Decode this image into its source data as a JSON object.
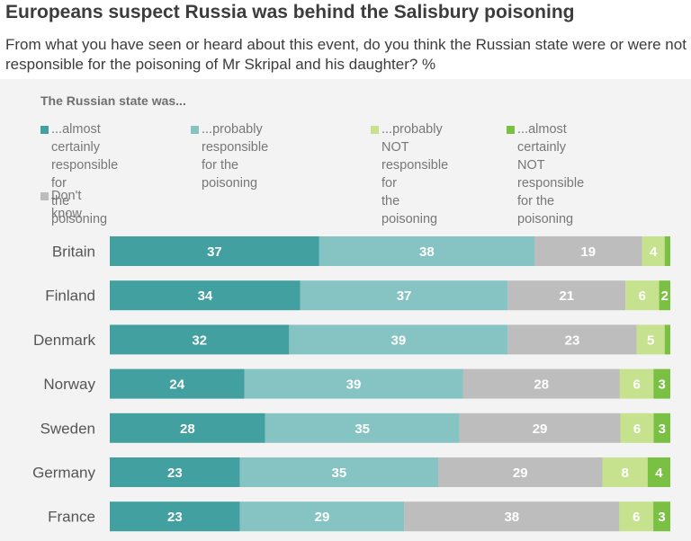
{
  "chart_data": {
    "type": "bar",
    "orientation": "horizontal-stacked",
    "title": "Europeans suspect Russia was behind the Salisbury poisoning",
    "subtitle": "From what you have seen or heard about this event, do you think the Russian state were or were not responsible for the poisoning of Mr Skripal and his daughter? %",
    "legend_title": "The Russian state was...",
    "categories": [
      "Britain",
      "Finland",
      "Denmark",
      "Norway",
      "Sweden",
      "Germany",
      "France"
    ],
    "series": [
      {
        "name": "...almost certainly\nresponsible for\nthe poisoning",
        "color": "#43a0a0",
        "values": [
          37,
          34,
          32,
          24,
          28,
          23,
          23
        ]
      },
      {
        "name": "...probably responsible\nfor the poisoning",
        "color": "#85c4c3",
        "values": [
          38,
          37,
          39,
          39,
          35,
          35,
          29
        ]
      },
      {
        "name": "Don't know",
        "color": "#bdbdbd",
        "values": [
          19,
          21,
          23,
          28,
          29,
          29,
          38
        ]
      },
      {
        "name": "...probably NOT\nresponsible for\nthe poisoning",
        "color": "#c6e28e",
        "values": [
          4,
          6,
          5,
          6,
          6,
          8,
          6
        ]
      },
      {
        "name": "...almost certainly NOT\nresponsible for the\npoisoning",
        "color": "#7ac143",
        "values": [
          1,
          2,
          1,
          3,
          3,
          4,
          3
        ]
      }
    ],
    "labels": [
      [
        "37",
        "38",
        "19",
        "4",
        ""
      ],
      [
        "34",
        "37",
        "21",
        "6",
        "2"
      ],
      [
        "32",
        "39",
        "23",
        "5",
        ""
      ],
      [
        "24",
        "39",
        "28",
        "6",
        "3"
      ],
      [
        "28",
        "35",
        "29",
        "6",
        "3"
      ],
      [
        "23",
        "35",
        "29",
        "8",
        "4"
      ],
      [
        "23",
        "29",
        "38",
        "6",
        "3"
      ]
    ],
    "xlim": [
      0,
      100
    ]
  }
}
